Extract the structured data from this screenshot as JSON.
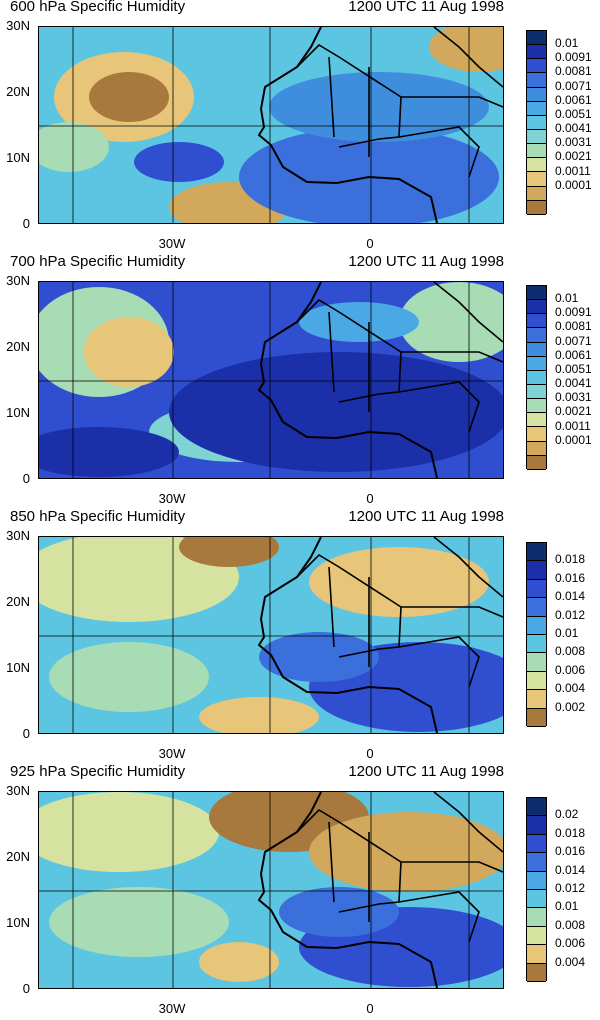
{
  "panels": [
    {
      "title": "600 hPa Specific Humidity",
      "date": "1200 UTC 11 Aug 1998",
      "y_labels": [
        "30N",
        "20N",
        "10N",
        "0"
      ],
      "x_labels": [
        "30W",
        "0"
      ],
      "colorbar_labels": [
        "0.01",
        "0.0091",
        "0.0081",
        "0.0071",
        "0.0061",
        "0.0051",
        "0.0041",
        "0.0031",
        "0.0021",
        "0.0011",
        "0.0001"
      ],
      "colors": [
        "#0e2d6e",
        "#1a2fa8",
        "#2f4fd0",
        "#3a6fdc",
        "#3f8ede",
        "#4aa8e4",
        "#5cc6e2",
        "#7fd3d2",
        "#a8dcb4",
        "#d6e3a0",
        "#e7c579",
        "#d2a85c",
        "#a7793c"
      ]
    },
    {
      "title": "700 hPa Specific Humidity",
      "date": "1200 UTC 11 Aug 1998",
      "y_labels": [
        "30N",
        "20N",
        "10N",
        "0"
      ],
      "x_labels": [
        "30W",
        "0"
      ],
      "colorbar_labels": [
        "0.01",
        "0.0091",
        "0.0081",
        "0.0071",
        "0.0061",
        "0.0051",
        "0.0041",
        "0.0031",
        "0.0021",
        "0.0011",
        "0.0001"
      ],
      "colors": [
        "#0e2d6e",
        "#1a2fa8",
        "#2f4fd0",
        "#3a6fdc",
        "#3f8ede",
        "#4aa8e4",
        "#5cc6e2",
        "#7fd3d2",
        "#a8dcb4",
        "#d6e3a0",
        "#e7c579",
        "#d2a85c",
        "#a7793c"
      ]
    },
    {
      "title": "850 hPa Specific Humidity",
      "date": "1200 UTC 11 Aug 1998",
      "y_labels": [
        "30N",
        "20N",
        "10N",
        "0"
      ],
      "x_labels": [
        "30W",
        "0"
      ],
      "colorbar_labels": [
        "0.018",
        "0.016",
        "0.014",
        "0.012",
        "0.01",
        "0.008",
        "0.006",
        "0.004",
        "0.002"
      ],
      "colors": [
        "#0e2d6e",
        "#1a2fa8",
        "#2f4fd0",
        "#3a6fdc",
        "#4aa8e4",
        "#5cc6e2",
        "#a8dcb4",
        "#d6e3a0",
        "#e7c579",
        "#a7793c"
      ]
    },
    {
      "title": "925 hPa Specific Humidity",
      "date": "1200 UTC 11 Aug 1998",
      "y_labels": [
        "30N",
        "20N",
        "10N",
        "0"
      ],
      "x_labels": [
        "30W",
        "0"
      ],
      "colorbar_labels": [
        "0.02",
        "0.018",
        "0.016",
        "0.014",
        "0.012",
        "0.01",
        "0.008",
        "0.006",
        "0.004"
      ],
      "colors": [
        "#0e2d6e",
        "#1a2fa8",
        "#2f4fd0",
        "#3a6fdc",
        "#4aa8e4",
        "#5cc6e2",
        "#a8dcb4",
        "#d6e3a0",
        "#e7c579",
        "#a7793c"
      ]
    }
  ]
}
